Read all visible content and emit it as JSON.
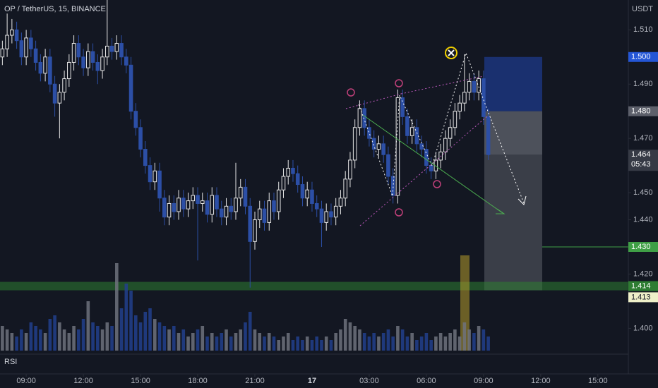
{
  "chart_data": {
    "type": "candlestick",
    "title": "OP / TetherUS, 15, BINANCE",
    "y_axis_label": "USDT",
    "indicator_label": "RSI",
    "countdown": "05:43",
    "up_color": "#e6e6e6",
    "down_color": "#2c4fa6",
    "volume_up_color": "#6f727c",
    "volume_down_color": "#223f8c",
    "xlim": [
      -0.5,
      131.4
    ],
    "ylim": [
      1.391,
      1.521
    ],
    "vlim": [
      0,
      130
    ],
    "xticks": [
      {
        "value": 5,
        "label": "09:00"
      },
      {
        "value": 17,
        "label": "12:00"
      },
      {
        "value": 29,
        "label": "15:00"
      },
      {
        "value": 41,
        "label": "18:00"
      },
      {
        "value": 53,
        "label": "21:00"
      },
      {
        "value": 65,
        "label": "17"
      },
      {
        "value": 77,
        "label": "03:00"
      },
      {
        "value": 89,
        "label": "06:00"
      },
      {
        "value": 101,
        "label": "09:00"
      },
      {
        "value": 113,
        "label": "12:00"
      },
      {
        "value": 125,
        "label": "15:00"
      }
    ],
    "yticks": [
      {
        "value": 1.51,
        "label": "1.510"
      },
      {
        "value": 1.49,
        "label": "1.490"
      },
      {
        "value": 1.47,
        "label": "1.470"
      },
      {
        "value": 1.45,
        "label": "1.450"
      },
      {
        "value": 1.44,
        "label": "1.440"
      },
      {
        "value": 1.42,
        "label": "1.420"
      },
      {
        "value": 1.4,
        "label": "1.400"
      }
    ],
    "price_labels": [
      {
        "value": 1.5,
        "label": "1.500",
        "color": "#2456d6",
        "text_color": "#ffffff"
      },
      {
        "value": 1.48,
        "label": "1.480",
        "color": "#5d606b",
        "text_color": "#ffffff"
      },
      {
        "value": 1.464,
        "label": "1.464",
        "color": "#363a45",
        "text_color": "#ffffff"
      },
      {
        "value": 1.43,
        "label": "1.430",
        "color": "#3f9f46",
        "text_color": "#ffffff"
      },
      {
        "value": 1.414,
        "label": "1.414",
        "color": "#2e7d32",
        "text_color": "#ffffff"
      },
      {
        "value": 1.413,
        "label": "1.413",
        "color": "#eef0c8",
        "text_color": "#131722"
      }
    ],
    "open": [
      1.5,
      1.503,
      1.508,
      1.51,
      1.506,
      1.5,
      1.507,
      1.503,
      1.498,
      1.494,
      1.5,
      1.49,
      1.483,
      1.487,
      1.492,
      1.498,
      1.505,
      1.5,
      1.496,
      1.502,
      1.498,
      1.495,
      1.5,
      1.504,
      1.502,
      1.505,
      1.5,
      1.497,
      1.48,
      1.474,
      1.466,
      1.46,
      1.454,
      1.458,
      1.448,
      1.441,
      1.446,
      1.443,
      1.448,
      1.444,
      1.447,
      1.449,
      1.446,
      1.447,
      1.442,
      1.449,
      1.444,
      1.441,
      1.445,
      1.443,
      1.448,
      1.452,
      1.445,
      1.432,
      1.44,
      1.444,
      1.439,
      1.447,
      1.443,
      1.451,
      1.456,
      1.459,
      1.457,
      1.453,
      1.448,
      1.451,
      1.446,
      1.444,
      1.439,
      1.443,
      1.441,
      1.445,
      1.448,
      1.455,
      1.462,
      1.474,
      1.481,
      1.474,
      1.47,
      1.466,
      1.468,
      1.464,
      1.456,
      1.449,
      1.485,
      1.478,
      1.471,
      1.474,
      1.468,
      1.466,
      1.46,
      1.458,
      1.462,
      1.465,
      1.47,
      1.474,
      1.48,
      1.483,
      1.487,
      1.491,
      1.487,
      1.492,
      1.478
    ],
    "high": [
      1.506,
      1.516,
      1.514,
      1.513,
      1.509,
      1.51,
      1.51,
      1.506,
      1.501,
      1.503,
      1.503,
      1.493,
      1.49,
      1.495,
      1.501,
      1.508,
      1.508,
      1.503,
      1.505,
      1.505,
      1.501,
      1.503,
      1.521,
      1.507,
      1.508,
      1.508,
      1.503,
      1.5,
      1.483,
      1.477,
      1.469,
      1.463,
      1.461,
      1.461,
      1.451,
      1.449,
      1.449,
      1.451,
      1.451,
      1.45,
      1.452,
      1.452,
      1.45,
      1.45,
      1.452,
      1.452,
      1.447,
      1.448,
      1.448,
      1.461,
      1.455,
      1.455,
      1.448,
      1.443,
      1.447,
      1.447,
      1.45,
      1.45,
      1.454,
      1.459,
      1.462,
      1.462,
      1.46,
      1.456,
      1.454,
      1.454,
      1.449,
      1.447,
      1.446,
      1.446,
      1.448,
      1.451,
      1.458,
      1.465,
      1.477,
      1.484,
      1.484,
      1.477,
      1.473,
      1.471,
      1.471,
      1.467,
      1.459,
      1.488,
      1.488,
      1.481,
      1.477,
      1.477,
      1.471,
      1.469,
      1.463,
      1.465,
      1.468,
      1.473,
      1.477,
      1.483,
      1.486,
      1.501,
      1.494,
      1.494,
      1.495,
      1.495,
      1.481
    ],
    "low": [
      1.497,
      1.5,
      1.505,
      1.503,
      1.497,
      1.497,
      1.5,
      1.495,
      1.491,
      1.491,
      1.487,
      1.478,
      1.47,
      1.484,
      1.489,
      1.495,
      1.497,
      1.493,
      1.493,
      1.495,
      1.49,
      1.492,
      1.497,
      1.499,
      1.499,
      1.497,
      1.494,
      1.477,
      1.471,
      1.463,
      1.457,
      1.451,
      1.451,
      1.443,
      1.438,
      1.438,
      1.44,
      1.44,
      1.441,
      1.441,
      1.444,
      1.425,
      1.443,
      1.439,
      1.439,
      1.441,
      1.438,
      1.438,
      1.44,
      1.44,
      1.445,
      1.442,
      1.415,
      1.429,
      1.437,
      1.436,
      1.436,
      1.44,
      1.44,
      1.448,
      1.453,
      1.454,
      1.45,
      1.445,
      1.445,
      1.443,
      1.441,
      1.43,
      1.436,
      1.438,
      1.438,
      1.442,
      1.445,
      1.452,
      1.459,
      1.471,
      1.471,
      1.467,
      1.463,
      1.463,
      1.461,
      1.453,
      1.446,
      1.446,
      1.475,
      1.468,
      1.468,
      1.465,
      1.463,
      1.457,
      1.455,
      1.455,
      1.459,
      1.462,
      1.467,
      1.471,
      1.477,
      1.48,
      1.484,
      1.484,
      1.484,
      1.475,
      1.462
    ],
    "close": [
      1.503,
      1.508,
      1.51,
      1.506,
      1.5,
      1.507,
      1.503,
      1.498,
      1.494,
      1.5,
      1.49,
      1.483,
      1.487,
      1.492,
      1.498,
      1.505,
      1.5,
      1.496,
      1.502,
      1.498,
      1.495,
      1.5,
      1.504,
      1.502,
      1.505,
      1.5,
      1.497,
      1.48,
      1.474,
      1.466,
      1.46,
      1.454,
      1.458,
      1.448,
      1.441,
      1.446,
      1.443,
      1.448,
      1.444,
      1.447,
      1.449,
      1.446,
      1.447,
      1.442,
      1.449,
      1.444,
      1.441,
      1.445,
      1.443,
      1.448,
      1.452,
      1.445,
      1.432,
      1.44,
      1.444,
      1.439,
      1.447,
      1.443,
      1.451,
      1.456,
      1.459,
      1.457,
      1.453,
      1.448,
      1.451,
      1.446,
      1.444,
      1.439,
      1.443,
      1.441,
      1.445,
      1.448,
      1.455,
      1.462,
      1.474,
      1.481,
      1.474,
      1.47,
      1.466,
      1.468,
      1.464,
      1.456,
      1.449,
      1.485,
      1.478,
      1.471,
      1.474,
      1.468,
      1.466,
      1.46,
      1.458,
      1.462,
      1.465,
      1.47,
      1.474,
      1.48,
      1.483,
      1.487,
      1.491,
      1.487,
      1.492,
      1.478,
      1.464
    ],
    "volume": [
      35,
      30,
      25,
      20,
      30,
      25,
      40,
      35,
      30,
      25,
      45,
      50,
      40,
      30,
      25,
      35,
      30,
      45,
      70,
      40,
      35,
      30,
      40,
      35,
      124,
      60,
      95,
      85,
      50,
      40,
      55,
      60,
      45,
      40,
      35,
      30,
      35,
      25,
      30,
      20,
      25,
      30,
      35,
      20,
      25,
      20,
      25,
      30,
      20,
      25,
      30,
      40,
      55,
      30,
      25,
      20,
      25,
      20,
      15,
      20,
      25,
      15,
      20,
      15,
      20,
      15,
      20,
      15,
      20,
      15,
      25,
      30,
      45,
      40,
      35,
      30,
      25,
      20,
      25,
      20,
      25,
      30,
      20,
      35,
      30,
      20,
      25,
      15,
      20,
      25,
      15,
      20,
      25,
      20,
      25,
      30,
      20,
      40,
      30,
      25,
      35,
      30,
      20
    ]
  }
}
